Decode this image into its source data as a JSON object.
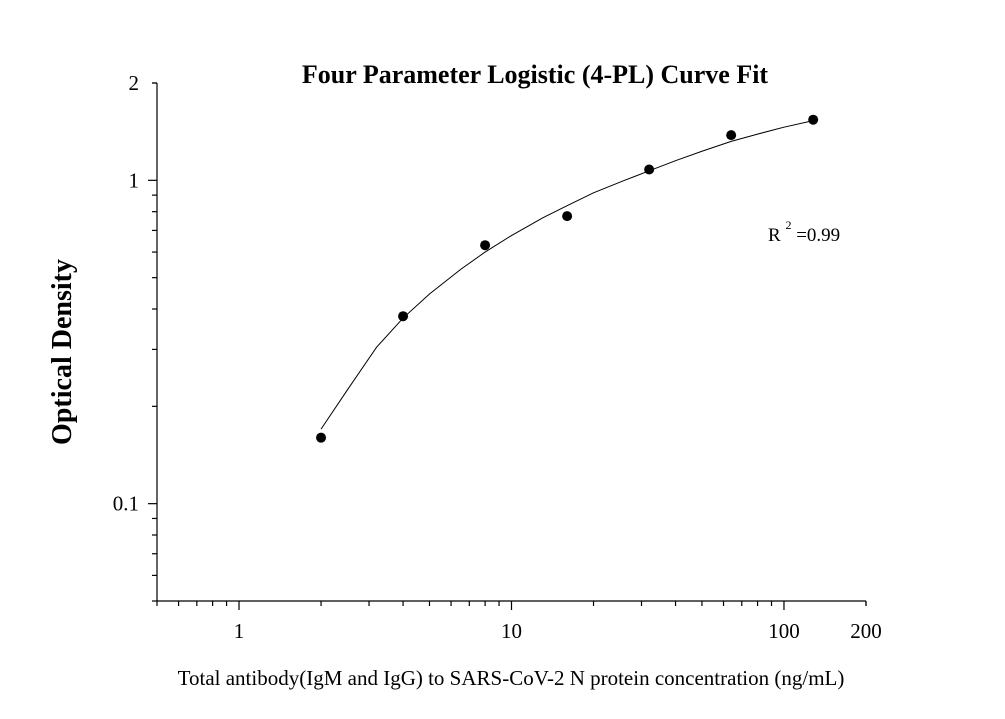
{
  "chart_data": {
    "type": "scatter",
    "title": "Four Parameter Logistic (4-PL) Curve Fit",
    "xlabel": "Total antibody(IgM and IgG) to SARS-CoV-2 N protein concentration (ng/mL)",
    "ylabel": "Optical Density",
    "x_scale": "log",
    "y_scale": "log",
    "xlim": [
      0.5,
      200
    ],
    "ylim": [
      0.05,
      2
    ],
    "x_ticks": [
      {
        "value": 1,
        "label": "1"
      },
      {
        "value": 10,
        "label": "10"
      },
      {
        "value": 100,
        "label": "100"
      },
      {
        "value": 200,
        "label": "200"
      }
    ],
    "y_ticks": [
      {
        "value": 0.1,
        "label": "0.1"
      },
      {
        "value": 1,
        "label": "1"
      },
      {
        "value": 2,
        "label": "2"
      }
    ],
    "grid": false,
    "legend": "none",
    "series": [
      {
        "points": [
          {
            "x": 2,
            "y": 0.16
          },
          {
            "x": 4,
            "y": 0.38
          },
          {
            "x": 8,
            "y": 0.63
          },
          {
            "x": 16,
            "y": 0.775
          },
          {
            "x": 32,
            "y": 1.08
          },
          {
            "x": 64,
            "y": 1.38
          },
          {
            "x": 128,
            "y": 1.54
          }
        ]
      }
    ],
    "fit_curve": {
      "model": "4PL",
      "points": [
        {
          "x": 2,
          "y": 0.17
        },
        {
          "x": 2.5,
          "y": 0.225
        },
        {
          "x": 3.2,
          "y": 0.305
        },
        {
          "x": 4,
          "y": 0.375
        },
        {
          "x": 5,
          "y": 0.445
        },
        {
          "x": 6.5,
          "y": 0.53
        },
        {
          "x": 8,
          "y": 0.6
        },
        {
          "x": 10,
          "y": 0.675
        },
        {
          "x": 13,
          "y": 0.765
        },
        {
          "x": 16,
          "y": 0.835
        },
        {
          "x": 20,
          "y": 0.915
        },
        {
          "x": 26,
          "y": 1.0
        },
        {
          "x": 32,
          "y": 1.07
        },
        {
          "x": 40,
          "y": 1.15
        },
        {
          "x": 50,
          "y": 1.23
        },
        {
          "x": 64,
          "y": 1.32
        },
        {
          "x": 80,
          "y": 1.39
        },
        {
          "x": 100,
          "y": 1.46
        },
        {
          "x": 128,
          "y": 1.53
        }
      ]
    },
    "annotations": [
      {
        "base": "R",
        "sup": "2",
        "rest": "=0.99"
      }
    ]
  }
}
